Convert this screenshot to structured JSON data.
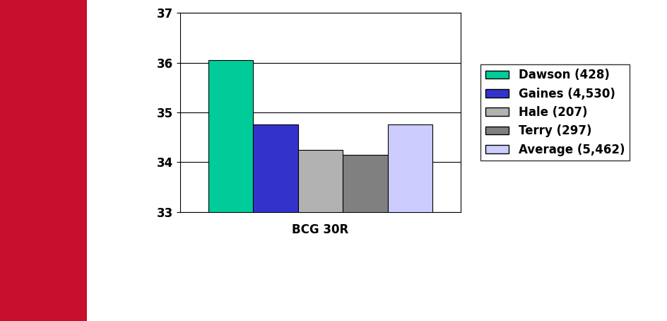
{
  "chart_data": {
    "type": "bar",
    "categories": [
      "BCG 30R"
    ],
    "series": [
      {
        "name": "Dawson (428)",
        "color": "#00cc99",
        "values": [
          36.05
        ]
      },
      {
        "name": "Gaines (4,530)",
        "color": "#3333cc",
        "values": [
          34.75
        ]
      },
      {
        "name": "Hale (207)",
        "color": "#b2b2b2",
        "values": [
          34.25
        ]
      },
      {
        "name": "Terry (297)",
        "color": "#808080",
        "values": [
          34.15
        ]
      },
      {
        "name": "Average (5,462)",
        "color": "#ccccff",
        "values": [
          34.75
        ]
      }
    ],
    "ylim": [
      33,
      37
    ],
    "yticks": [
      33,
      34,
      35,
      36,
      37
    ],
    "grid": true,
    "legend": "center left"
  }
}
